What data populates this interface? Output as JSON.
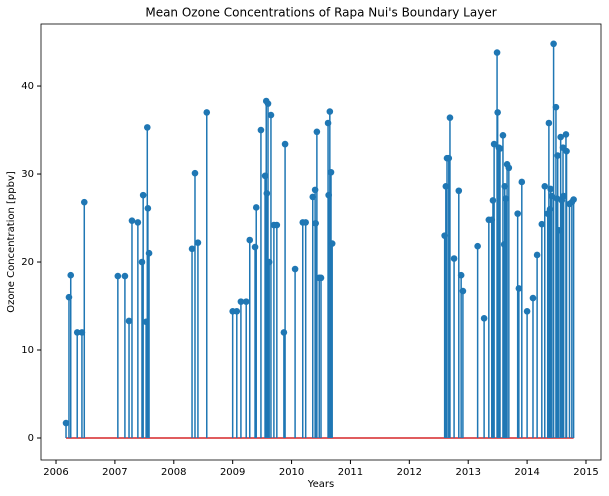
{
  "chart_data": {
    "type": "stem",
    "title": "Mean Ozone Concentrations of Rapa Nui's Boundary Layer",
    "x_label": "Years",
    "y_label": "Ozone Concentration [ppbv]",
    "color": "#1f77b4",
    "baseline_color": "#d62728",
    "x": [
      2006.17,
      2006.22,
      2006.25,
      2006.36,
      2006.44,
      2006.48,
      2007.05,
      2007.17,
      2007.24,
      2007.29,
      2007.39,
      2007.46,
      2007.48,
      2007.53,
      2007.55,
      2007.56,
      2007.58,
      2008.31,
      2008.36,
      2008.41,
      2008.56,
      2009.0,
      2009.07,
      2009.14,
      2009.23,
      2009.29,
      2009.38,
      2009.4,
      2009.48,
      2009.55,
      2009.57,
      2009.58,
      2009.6,
      2009.62,
      2009.65,
      2009.7,
      2009.75,
      2009.87,
      2009.89,
      2010.06,
      2010.19,
      2010.24,
      2010.36,
      2010.4,
      2010.41,
      2010.43,
      2010.47,
      2010.5,
      2010.62,
      2010.63,
      2010.65,
      2010.67,
      2010.69,
      2012.6,
      2012.62,
      2012.64,
      2012.67,
      2012.69,
      2012.76,
      2012.84,
      2012.88,
      2012.91,
      2013.16,
      2013.27,
      2013.35,
      2013.4,
      2013.42,
      2013.44,
      2013.49,
      2013.5,
      2013.52,
      2013.54,
      2013.59,
      2013.61,
      2013.62,
      2013.64,
      2013.66,
      2013.69,
      2013.84,
      2013.86,
      2013.91,
      2014.0,
      2014.1,
      2014.17,
      2014.25,
      2014.3,
      2014.35,
      2014.37,
      2014.39,
      2014.4,
      2014.42,
      2014.45,
      2014.49,
      2014.51,
      2014.52,
      2014.54,
      2014.57,
      2014.59,
      2014.61,
      2014.62,
      2014.66,
      2014.67,
      2014.72,
      2014.76,
      2014.79
    ],
    "values": [
      1.7,
      16,
      18.5,
      12,
      12,
      26.8,
      18.4,
      18.4,
      13.3,
      24.7,
      24.5,
      20,
      27.6,
      13.2,
      35.3,
      26.1,
      21,
      21.5,
      30.1,
      22.2,
      37,
      14.4,
      14.4,
      15.5,
      15.5,
      22.5,
      21.7,
      26.2,
      35,
      29.8,
      38.3,
      27.8,
      38,
      20,
      36.7,
      24.2,
      24.2,
      12,
      33.4,
      19.2,
      24.5,
      24.5,
      27.4,
      28.2,
      24.4,
      34.8,
      18.2,
      18.2,
      35.8,
      27.6,
      37.1,
      30.2,
      22.1,
      23,
      28.6,
      31.8,
      31.8,
      36.4,
      20.4,
      28.1,
      18.5,
      16.7,
      21.8,
      13.6,
      24.8,
      24.8,
      27,
      33.4,
      43.8,
      37,
      33,
      32.9,
      34.4,
      22,
      28.6,
      27.2,
      31.1,
      30.7,
      25.5,
      17,
      29.1,
      14.4,
      15.9,
      20.8,
      24.3,
      28.6,
      25.5,
      35.8,
      26,
      28.3,
      27.5,
      44.8,
      37.6,
      27.2,
      32.1,
      23.6,
      34.2,
      27,
      33,
      27.5,
      34.5,
      32.6,
      26.6,
      26.8,
      27.1
    ],
    "xlim": [
      2005.745,
      2015.255
    ],
    "xticks": [
      2006,
      2007,
      2008,
      2009,
      2010,
      2011,
      2012,
      2013,
      2014,
      2015
    ],
    "ylim": [
      -2.5,
      47.05
    ],
    "yticks": [
      0,
      10,
      20,
      30,
      40
    ]
  }
}
